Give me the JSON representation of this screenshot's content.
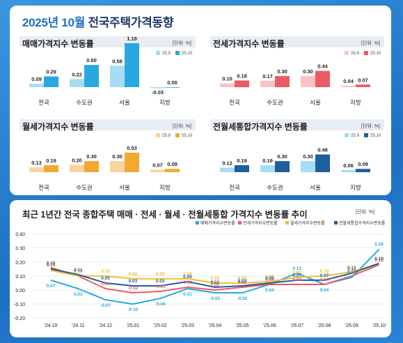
{
  "page": {
    "title_year": "2025년 10월",
    "title_rest": " 전국주택가격동향"
  },
  "bottom": {
    "title": "최근 1년간 전국 종합주택 매매 · 전세 · 월세 · 전월세통합 가격지수 변동률 추이",
    "unit": "[단위: %]"
  },
  "colors": {
    "sale": "#29a8e0",
    "jeonse": "#ec5b64",
    "monthly": "#f2a931",
    "combined": "#1f5f9c"
  },
  "chart_data": [
    {
      "type": "bar",
      "title": "매매가격지수 변동률",
      "unit": "[단위: %]",
      "categories": [
        "전국",
        "수도권",
        "서울",
        "지방"
      ],
      "series": [
        {
          "name": "'25.9",
          "color": "#a6dcf4",
          "values": [
            0.09,
            0.22,
            0.58,
            -0.03
          ]
        },
        {
          "name": "'25.10",
          "color": "#29a8e0",
          "values": [
            0.29,
            0.6,
            1.19,
            0.0
          ]
        }
      ]
    },
    {
      "type": "bar",
      "title": "전세가격지수 변동률",
      "unit": "[단위: %]",
      "categories": [
        "전국",
        "수도권",
        "서울",
        "지방"
      ],
      "series": [
        {
          "name": "'25.9",
          "color": "#f8c3c4",
          "values": [
            0.1,
            0.17,
            0.3,
            0.04
          ]
        },
        {
          "name": "'25.10",
          "color": "#ec5b64",
          "values": [
            0.18,
            0.3,
            0.44,
            0.07
          ]
        }
      ]
    },
    {
      "type": "bar",
      "title": "월세가격지수 변동률",
      "unit": "[단위: %]",
      "categories": [
        "전국",
        "수도권",
        "서울",
        "지방"
      ],
      "series": [
        {
          "name": "'25.9",
          "color": "#f8d59e",
          "values": [
            0.13,
            0.2,
            0.3,
            0.07
          ]
        },
        {
          "name": "'25.10",
          "color": "#f2a931",
          "values": [
            0.19,
            0.3,
            0.53,
            0.09
          ]
        }
      ]
    },
    {
      "type": "bar",
      "title": "전월세통합가격지수 변동률",
      "unit": "[단위: %]",
      "categories": [
        "전국",
        "수도권",
        "서울",
        "지방"
      ],
      "series": [
        {
          "name": "'25.9",
          "color": "#a6dcf4",
          "values": [
            0.12,
            0.19,
            0.3,
            0.06
          ]
        },
        {
          "name": "'25.10",
          "color": "#1f5f9c",
          "values": [
            0.19,
            0.3,
            0.48,
            0.09
          ]
        }
      ]
    },
    {
      "type": "line",
      "unit": "[단위: %]",
      "x": [
        "'24.10",
        "'24.11",
        "'24.12",
        "'25.01",
        "'25.02",
        "'25.03",
        "'25.04",
        "'25.05",
        "'25.06",
        "'25.07",
        "'25.08",
        "'25.09",
        "'25.10"
      ],
      "ylim": [
        -0.2,
        0.4
      ],
      "yticks": [
        "0.40",
        "0.30",
        "0.20",
        "0.10",
        "0.00",
        "-0.10",
        "-0.20"
      ],
      "legend": "top",
      "series": [
        {
          "name": "매매가격지수변동률",
          "color": "#29a8e0",
          "values": [
            0.07,
            0.01,
            -0.07,
            -0.1,
            -0.06,
            0.01,
            -0.02,
            -0.02,
            0.04,
            0.12,
            0.04,
            0.09,
            0.29
          ]
        },
        {
          "name": "전세가격지수변동률",
          "color": "#ec5b64",
          "values": [
            0.16,
            0.1,
            0.01,
            -0.02,
            -0.01,
            0.02,
            0.0,
            0.02,
            0.04,
            0.04,
            0.04,
            0.1,
            0.18
          ]
        },
        {
          "name": "월세가격지수변동률",
          "color": "#f2c12e",
          "values": [
            0.14,
            0.1,
            0.1,
            0.08,
            0.08,
            0.08,
            0.05,
            0.05,
            0.06,
            0.09,
            0.1,
            0.13,
            0.19
          ]
        },
        {
          "name": "전월세통합가격지수변동률",
          "color": "#1f5f9c",
          "values": [
            0.15,
            0.11,
            0.05,
            0.03,
            0.03,
            0.06,
            0.02,
            0.03,
            0.05,
            0.07,
            0.07,
            0.12,
            0.19
          ]
        }
      ]
    }
  ]
}
